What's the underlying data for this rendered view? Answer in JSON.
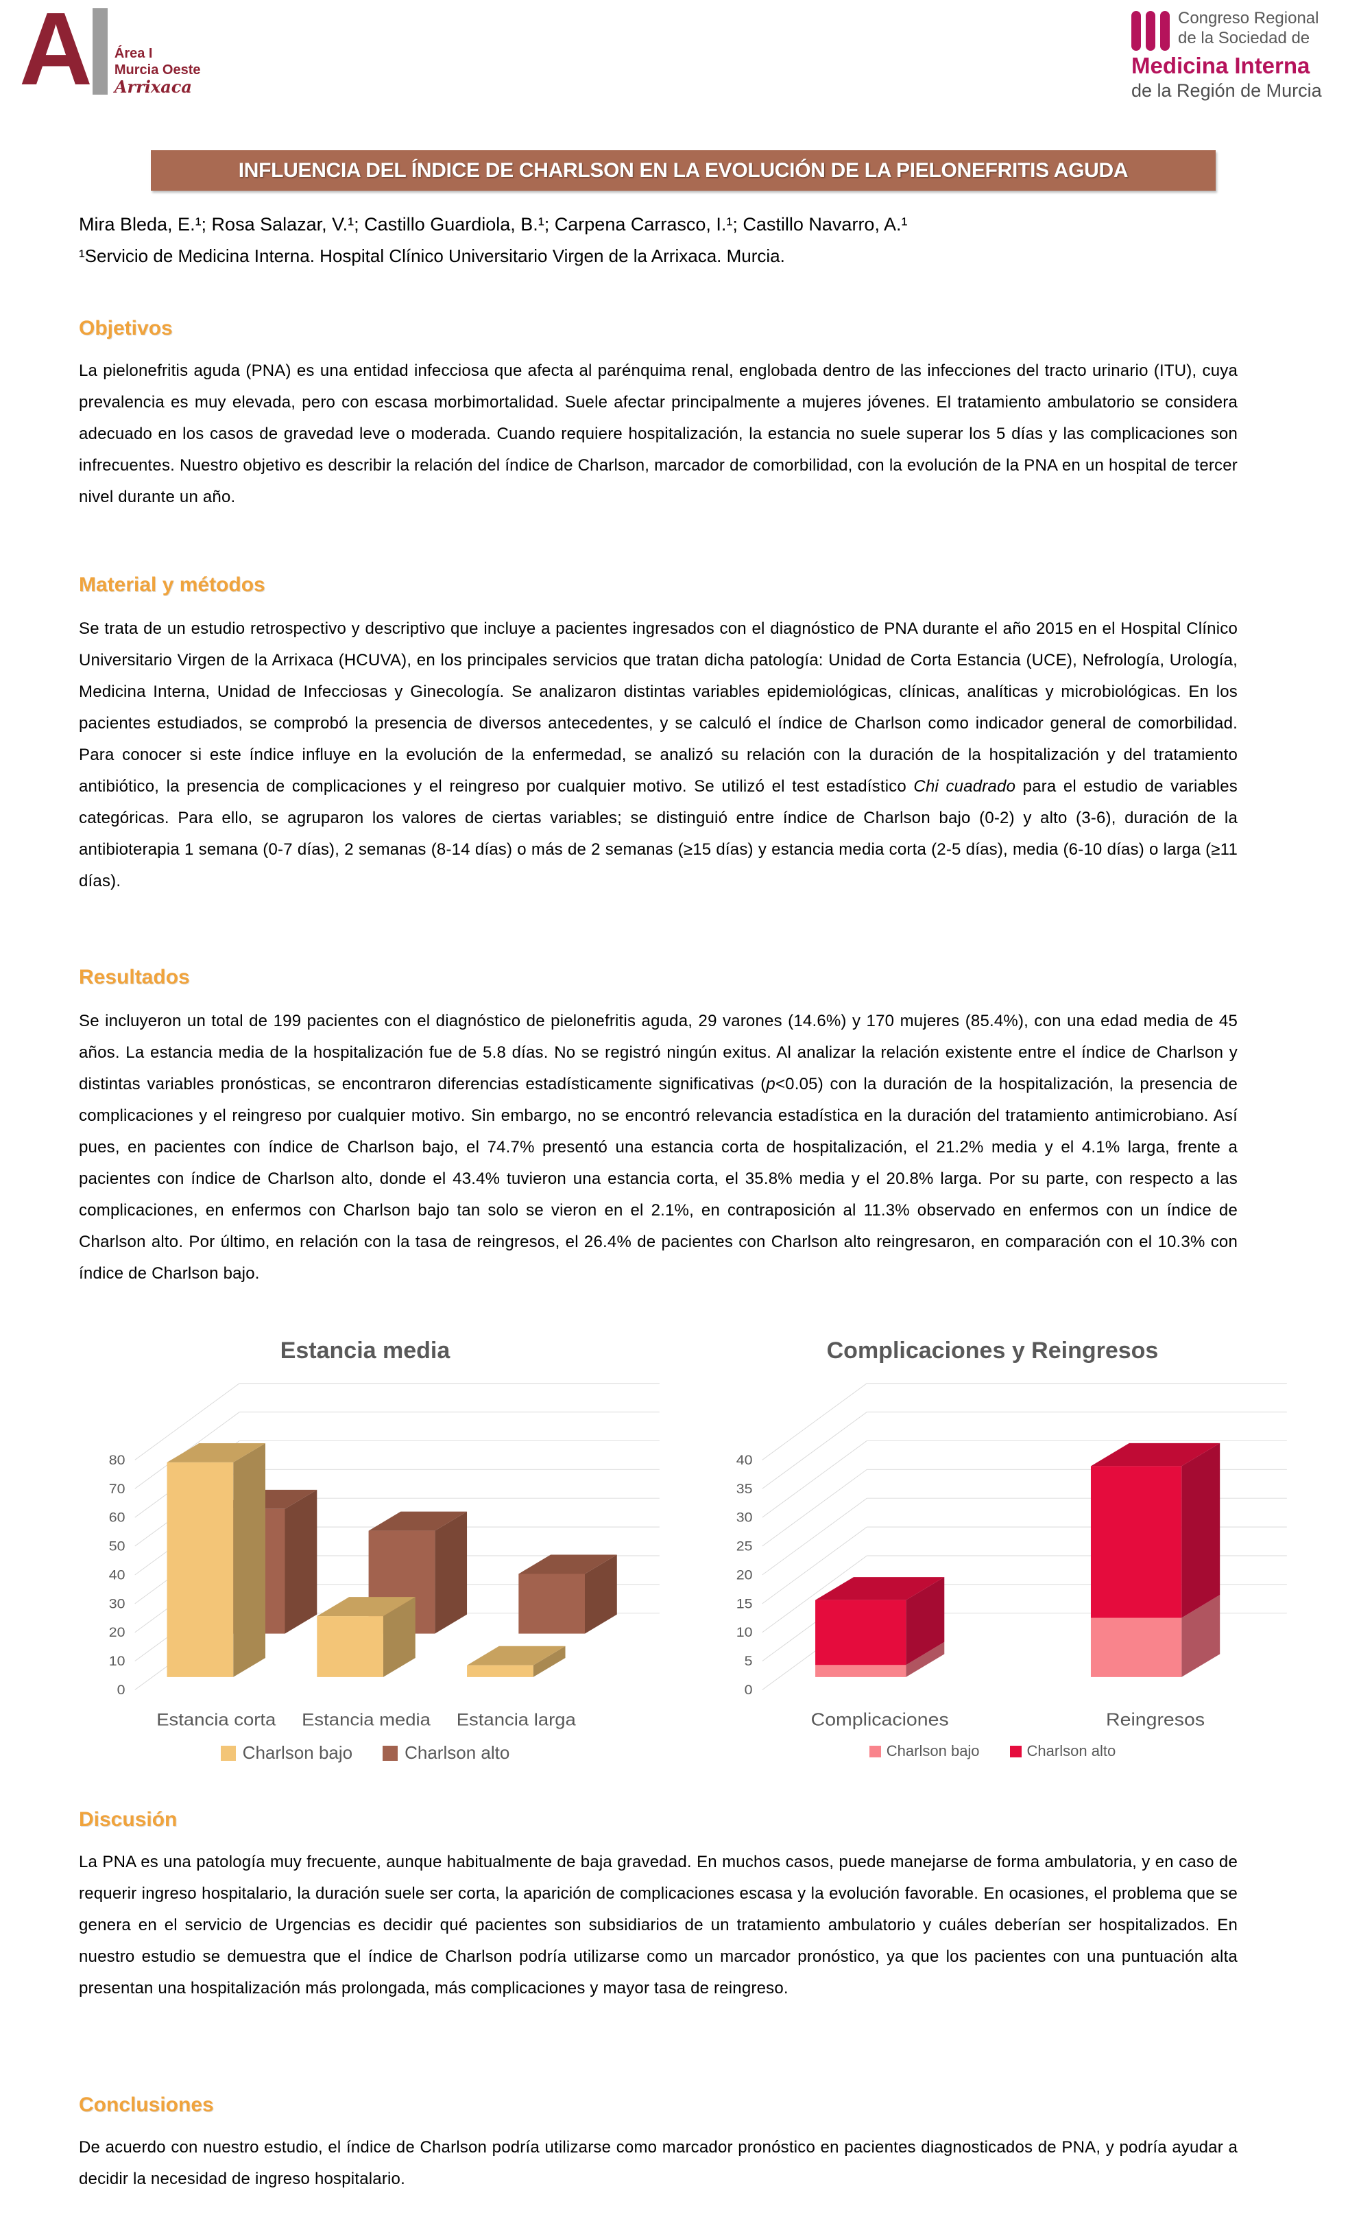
{
  "header": {
    "area_logo": {
      "letter": "A",
      "line1": "Área I",
      "line2": "Murcia Oeste",
      "script": "Arrixaca"
    },
    "congress_logo": {
      "top_line1": "Congreso Regional",
      "top_line2": "de la Sociedad de",
      "accent_line": "Medicina Interna",
      "bottom_line": "de la Región de Murcia"
    }
  },
  "title_bar": {
    "text": "INFLUENCIA DEL ÍNDICE DE CHARLSON EN LA EVOLUCIÓN DE LA PIELONEFRITIS AGUDA"
  },
  "byline": {
    "authors": "Mira Bleda, E.¹; Rosa Salazar, V.¹; Castillo Guardiola, B.¹; Carpena Carrasco, I.¹; Castillo Navarro, A.¹",
    "affiliation": "¹Servicio de Medicina Interna. Hospital Clínico Universitario Virgen de la Arrixaca. Murcia."
  },
  "sections": {
    "objetivos": {
      "heading": "Objetivos",
      "runs": [
        {
          "text": "La pielonefritis aguda (PNA) es una entidad infecciosa que afecta al parénquima renal, englobada dentro de las infecciones del tracto urinario (ITU), cuya prevalencia es muy elevada, pero con escasa morbimortalidad. Suele afectar principalmente a mujeres jóvenes. El tratamiento ambulatorio se considera adecuado en los casos de gravedad leve o moderada. Cuando requiere hospitalización, la estancia no suele superar los 5 días y las complicaciones son infrecuentes. Nuestro objetivo es describir la relación del índice de Charlson, marcador de comorbilidad, con la evolución de la PNA en un hospital de tercer nivel durante un año."
        }
      ]
    },
    "material": {
      "heading": "Material y métodos",
      "runs": [
        {
          "text": "Se trata de un estudio retrospectivo y descriptivo que incluye a pacientes ingresados con el diagnóstico de PNA durante el año 2015 en el Hospital Clínico Universitario Virgen de la Arrixaca (HCUVA), en los principales servicios que tratan dicha patología: Unidad de Corta Estancia (UCE), Nefrología, Urología, Medicina Interna, Unidad de Infecciosas y Ginecología. Se analizaron distintas variables epidemiológicas, clínicas, analíticas y microbiológicas. En los pacientes estudiados, se comprobó la presencia de diversos antecedentes, y se calculó el índice de Charlson como indicador general de comorbilidad. Para conocer si este índice influye en la evolución de la enfermedad, se analizó su relación con la duración de la hospitalización y del tratamiento antibiótico, la presencia de complicaciones y el reingreso por cualquier motivo. Se utilizó el test estadístico "
        },
        {
          "text": "Chi cuadrado",
          "italic": true
        },
        {
          "text": " para el estudio de variables categóricas. Para ello, se agruparon los valores de ciertas variables; se distinguió entre índice de Charlson bajo (0-2) y alto (3-6), duración de la antibioterapia 1 semana (0-7 días), 2 semanas (8-14 días) o más de 2 semanas (≥15 días) y estancia media corta (2-5 días), media (6-10 días) o larga (≥11 días)."
        }
      ]
    },
    "resultados": {
      "heading": "Resultados",
      "runs": [
        {
          "text": "Se incluyeron un total de 199 pacientes con el diagnóstico de pielonefritis aguda, 29 varones (14.6%) y 170 mujeres (85.4%), con una edad media de 45 años. La estancia media de la hospitalización fue de 5.8 días. No se registró ningún exitus. Al analizar la relación existente entre el índice de Charlson y distintas variables pronósticas, se encontraron diferencias estadísticamente significativas ("
        },
        {
          "text": "p",
          "italic": true
        },
        {
          "text": "<0.05) con la duración de la hospitalización, la presencia de complicaciones y el reingreso por cualquier motivo. Sin embargo, no se encontró relevancia estadística en la duración del tratamiento antimicrobiano. Así pues, en pacientes con índice de Charlson bajo, el 74.7% presentó una estancia corta de hospitalización, el 21.2% media y el 4.1% larga, frente a pacientes con índice de Charlson alto, donde el 43.4% tuvieron una estancia corta, el 35.8% media y el 20.8% larga. Por su parte, con respecto a las complicaciones, en enfermos con Charlson bajo tan solo se vieron en el 2.1%, en contraposición al 11.3% observado en enfermos con un índice de Charlson alto. Por último, en relación con la tasa de reingresos, el 26.4% de pacientes con Charlson alto reingresaron, en comparación con el 10.3% con índice de Charlson bajo."
        }
      ]
    },
    "discusion": {
      "heading": "Discusión",
      "runs": [
        {
          "text": "La PNA es una patología muy frecuente, aunque habitualmente de baja gravedad. En muchos casos, puede manejarse de forma ambulatoria, y en caso de requerir ingreso hospitalario, la duración suele ser corta, la aparición de complicaciones escasa y la evolución favorable. En ocasiones, el problema que se genera en el servicio de Urgencias es decidir qué pacientes son subsidiarios de un tratamiento ambulatorio y cuáles deberían ser hospitalizados. En nuestro estudio se demuestra que el índice de Charlson podría utilizarse como un marcador pronóstico, ya que los pacientes con una puntuación alta presentan una hospitalización más prolongada, más complicaciones y mayor tasa de reingreso."
        }
      ]
    },
    "conclusiones": {
      "heading": "Conclusiones",
      "runs": [
        {
          "text": "De acuerdo con nuestro estudio, el índice de Charlson podría utilizarse como marcador pronóstico en pacientes diagnosticados de PNA, y podría ayudar a decidir la necesidad de ingreso hospitalario."
        }
      ]
    }
  },
  "chart_data": [
    {
      "type": "bar",
      "style": "3d-clustered",
      "title": "Estancia media",
      "categories": [
        "Estancia corta",
        "Estancia media",
        "Estancia larga"
      ],
      "series": [
        {
          "name": "Charlson bajo",
          "values": [
            74.7,
            21.2,
            4.1
          ],
          "color": "#f3c577",
          "top": "#c8a25f",
          "side": "#a98951"
        },
        {
          "name": "Charlson alto",
          "values": [
            43.4,
            35.8,
            20.8
          ],
          "color": "#a2624e",
          "top": "#8c5340",
          "side": "#7a4736"
        }
      ],
      "ylim": [
        0,
        80
      ],
      "ytick": 10,
      "grid": true,
      "legend_position": "bottom"
    },
    {
      "type": "bar",
      "style": "3d-stacked",
      "title": "Complicaciones y Reingresos",
      "categories": [
        "Complicaciones",
        "Reingresos"
      ],
      "series": [
        {
          "name": "Charlson bajo",
          "values": [
            2.1,
            10.3
          ],
          "color": "#f9848c",
          "top": "#d96f79",
          "side": "#b05560"
        },
        {
          "name": "Charlson alto",
          "values": [
            11.3,
            26.4
          ],
          "color": "#e50c3d",
          "top": "#c00b35",
          "side": "#a50b32"
        }
      ],
      "ylim": [
        0,
        40
      ],
      "ytick": 5,
      "grid": true,
      "legend_position": "bottom"
    }
  ],
  "colors": {
    "title_bar_bg": "#a96a52",
    "section_heading": "#f0a33c",
    "axis_text": "#595959",
    "gridline": "#d9d9d9",
    "logo_dark_red": "#8e2233",
    "logo_magenta": "#b5135b",
    "logo_gray": "#595959"
  }
}
